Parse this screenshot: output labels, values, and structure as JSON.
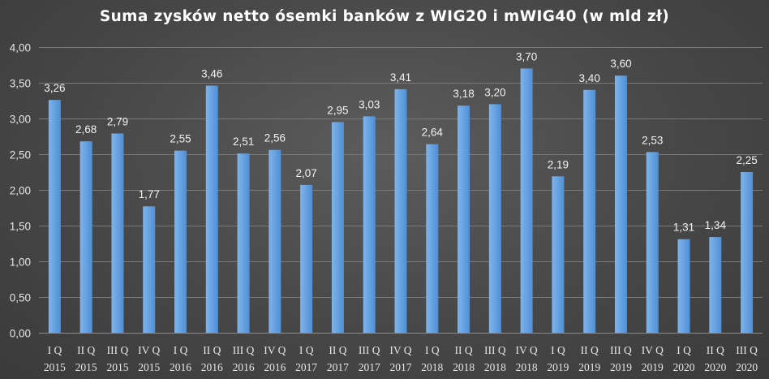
{
  "chart_data": {
    "type": "bar",
    "title": "Suma zysków netto ósemki banków z WIG20 i mWIG40 (w mld zł)",
    "categories": [
      [
        "I Q",
        "2015"
      ],
      [
        "II Q",
        "2015"
      ],
      [
        "III Q",
        "2015"
      ],
      [
        "IV Q",
        "2015"
      ],
      [
        "I Q",
        "2016"
      ],
      [
        "II Q",
        "2016"
      ],
      [
        "III Q",
        "2016"
      ],
      [
        "IV Q",
        "2016"
      ],
      [
        "I Q",
        "2017"
      ],
      [
        "II Q",
        "2017"
      ],
      [
        "III Q",
        "2017"
      ],
      [
        "IV Q",
        "2017"
      ],
      [
        "I Q",
        "2018"
      ],
      [
        "II Q",
        "2018"
      ],
      [
        "III Q",
        "2018"
      ],
      [
        "IV Q",
        "2018"
      ],
      [
        "I Q",
        "2019"
      ],
      [
        "II Q",
        "2019"
      ],
      [
        "III Q",
        "2019"
      ],
      [
        "IV Q",
        "2019"
      ],
      [
        "I Q",
        "2020"
      ],
      [
        "II Q",
        "2020"
      ],
      [
        "III Q",
        "2020"
      ]
    ],
    "values": [
      3.26,
      2.68,
      2.79,
      1.77,
      2.55,
      3.46,
      2.51,
      2.56,
      2.07,
      2.95,
      3.03,
      3.41,
      2.64,
      3.18,
      3.2,
      3.7,
      2.19,
      3.4,
      3.6,
      2.53,
      1.31,
      1.34,
      2.25
    ],
    "value_labels": [
      "3,26",
      "2,68",
      "2,79",
      "1,77",
      "2,55",
      "3,46",
      "2,51",
      "2,56",
      "2,07",
      "2,95",
      "3,03",
      "3,41",
      "2,64",
      "3,18",
      "3,20",
      "3,70",
      "2,19",
      "3,40",
      "3,60",
      "2,53",
      "1,31",
      "1,34",
      "2,25"
    ],
    "ylim": [
      0,
      4
    ],
    "yticks": [
      0,
      0.5,
      1,
      1.5,
      2,
      2.5,
      3,
      3.5,
      4
    ],
    "ytick_labels": [
      "0,00",
      "0,50",
      "1,00",
      "1,50",
      "2,00",
      "2,50",
      "3,00",
      "3,50",
      "4,00"
    ],
    "grid": true,
    "colors": {
      "bar_light": "#7fb4ea",
      "bar_dark": "#4f8fd6"
    }
  }
}
